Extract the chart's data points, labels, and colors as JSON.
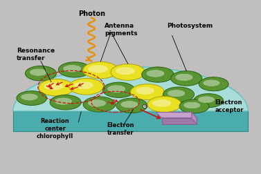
{
  "bg_color": "#c0bfbe",
  "membrane_top_color": "#a8dcd8",
  "membrane_side_color": "#4aacac",
  "membrane_edge_color": "#2a8888",
  "green_disk_color": "#5a9432",
  "green_disk_edge": "#2a6010",
  "yellow_disk_color": "#e8e020",
  "yellow_disk_edge": "#b0a000",
  "electron_acceptor_top": "#c8a0cc",
  "electron_acceptor_side": "#a078a8",
  "electron_acceptor_edge": "#806090",
  "photon_color": "#e89010",
  "arrow_color": "#cc1010",
  "text_color": "#000000",
  "label_photon": "Photon",
  "label_resonance": "Resonance\ntransfer",
  "label_antenna": "Antenna\npigments",
  "label_photosystem": "Photosystem",
  "label_reaction": "Reaction\ncenter\nchlorophyll",
  "label_electron_transfer": "Electron\ntransfer",
  "label_electron_acceptor": "Electron\nacceptor",
  "figsize": [
    3.77,
    2.52
  ],
  "dpi": 100
}
